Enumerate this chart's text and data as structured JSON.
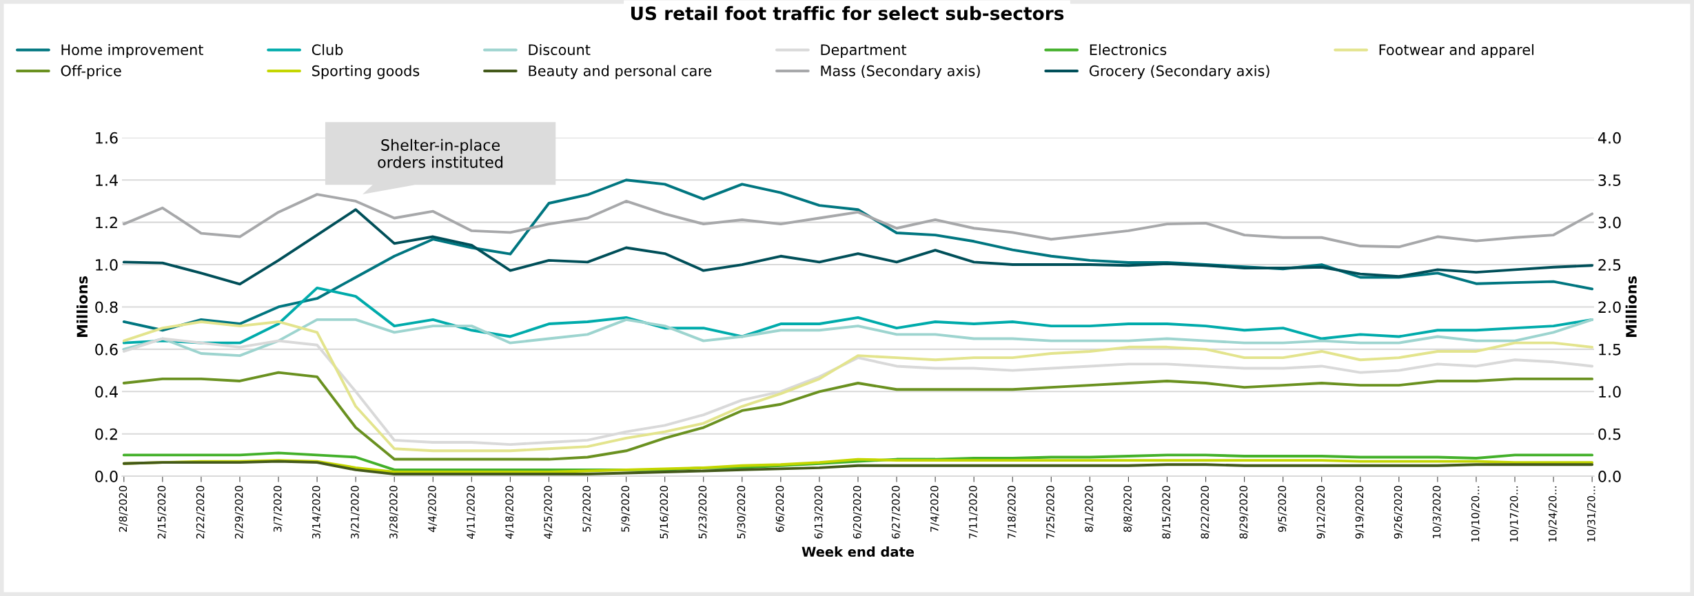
{
  "chart_data": {
    "type": "line",
    "title": "US retail foot traffic for select sub-sectors",
    "xlabel": "Week end date",
    "ylabel": "Millions",
    "y2label": "Millions",
    "categories": [
      "2/8/2020",
      "2/15/2020",
      "2/22/2020",
      "2/29/2020",
      "3/7/2020",
      "3/14/2020",
      "3/21/2020",
      "3/28/2020",
      "4/4/2020",
      "4/11/2020",
      "4/18/2020",
      "4/25/2020",
      "5/2/2020",
      "5/9/2020",
      "5/16/2020",
      "5/23/2020",
      "5/30/2020",
      "6/6/2020",
      "6/13/2020",
      "6/20/2020",
      "6/27/2020",
      "7/4/2020",
      "7/11/2020",
      "7/18/2020",
      "7/25/2020",
      "8/1/2020",
      "8/8/2020",
      "8/15/2020",
      "8/22/2020",
      "8/29/2020",
      "9/5/2020",
      "9/12/2020",
      "9/19/2020",
      "9/26/2020",
      "10/3/2020",
      "10/10/20...",
      "10/17/20...",
      "10/24/20...",
      "10/31/20..."
    ],
    "series": [
      {
        "name": "Home improvement",
        "color": "#007680",
        "values": [
          0.73,
          0.69,
          0.74,
          0.72,
          0.8,
          0.84,
          0.94,
          1.04,
          1.12,
          1.08,
          1.05,
          1.29,
          1.33,
          1.4,
          1.38,
          1.31,
          1.38,
          1.34,
          1.28,
          1.26,
          1.15,
          1.14,
          1.11,
          1.07,
          1.04,
          1.02,
          1.01,
          1.01,
          1.0,
          0.99,
          0.98,
          1.0,
          0.94,
          0.94,
          0.96,
          0.91,
          0.915,
          0.92,
          0.885
        ]
      },
      {
        "name": "Club",
        "color": "#00abab",
        "values": [
          0.63,
          0.64,
          0.63,
          0.63,
          0.72,
          0.89,
          0.85,
          0.71,
          0.74,
          0.69,
          0.66,
          0.72,
          0.73,
          0.75,
          0.7,
          0.7,
          0.66,
          0.72,
          0.72,
          0.75,
          0.7,
          0.73,
          0.72,
          0.73,
          0.71,
          0.71,
          0.72,
          0.72,
          0.71,
          0.69,
          0.7,
          0.65,
          0.67,
          0.66,
          0.69,
          0.69,
          0.7,
          0.71,
          0.74
        ]
      },
      {
        "name": "Discount",
        "color": "#9dd4cf",
        "values": [
          0.6,
          0.65,
          0.58,
          0.57,
          0.64,
          0.74,
          0.74,
          0.68,
          0.71,
          0.71,
          0.63,
          0.65,
          0.67,
          0.74,
          0.71,
          0.64,
          0.66,
          0.69,
          0.69,
          0.71,
          0.67,
          0.67,
          0.65,
          0.65,
          0.64,
          0.64,
          0.64,
          0.65,
          0.64,
          0.63,
          0.63,
          0.64,
          0.63,
          0.63,
          0.66,
          0.64,
          0.64,
          0.68,
          0.74
        ]
      },
      {
        "name": "Department",
        "color": "#d9d9d9",
        "values": [
          0.59,
          0.65,
          0.63,
          0.61,
          0.64,
          0.62,
          0.4,
          0.17,
          0.16,
          0.16,
          0.15,
          0.16,
          0.17,
          0.21,
          0.24,
          0.29,
          0.36,
          0.4,
          0.47,
          0.56,
          0.52,
          0.51,
          0.51,
          0.5,
          0.51,
          0.52,
          0.53,
          0.53,
          0.52,
          0.51,
          0.51,
          0.52,
          0.49,
          0.5,
          0.53,
          0.52,
          0.55,
          0.54,
          0.52
        ]
      },
      {
        "name": "Electronics",
        "color": "#43b02a",
        "values": [
          0.1,
          0.1,
          0.1,
          0.1,
          0.11,
          0.1,
          0.09,
          0.03,
          0.03,
          0.03,
          0.03,
          0.03,
          0.03,
          0.03,
          0.03,
          0.04,
          0.04,
          0.05,
          0.06,
          0.07,
          0.08,
          0.08,
          0.085,
          0.085,
          0.09,
          0.09,
          0.095,
          0.1,
          0.1,
          0.095,
          0.095,
          0.095,
          0.09,
          0.09,
          0.09,
          0.085,
          0.1,
          0.1,
          0.1
        ]
      },
      {
        "name": "Footwear and apparel",
        "color": "#e3e48d",
        "values": [
          0.64,
          0.7,
          0.73,
          0.71,
          0.73,
          0.68,
          0.33,
          0.13,
          0.12,
          0.12,
          0.12,
          0.13,
          0.14,
          0.18,
          0.21,
          0.25,
          0.33,
          0.39,
          0.46,
          0.57,
          0.56,
          0.55,
          0.56,
          0.56,
          0.58,
          0.59,
          0.61,
          0.61,
          0.6,
          0.56,
          0.56,
          0.59,
          0.55,
          0.56,
          0.59,
          0.59,
          0.63,
          0.63,
          0.61
        ]
      },
      {
        "name": "Off-price",
        "color": "#6a9120",
        "values": [
          0.44,
          0.46,
          0.46,
          0.45,
          0.49,
          0.47,
          0.23,
          0.08,
          0.08,
          0.08,
          0.08,
          0.08,
          0.09,
          0.12,
          0.18,
          0.23,
          0.31,
          0.34,
          0.4,
          0.44,
          0.41,
          0.41,
          0.41,
          0.41,
          0.42,
          0.43,
          0.44,
          0.45,
          0.44,
          0.42,
          0.43,
          0.44,
          0.43,
          0.43,
          0.45,
          0.45,
          0.46,
          0.46,
          0.46
        ]
      },
      {
        "name": "Sporting goods",
        "color": "#c4d600",
        "values": [
          0.06,
          0.065,
          0.07,
          0.07,
          0.075,
          0.07,
          0.04,
          0.02,
          0.02,
          0.02,
          0.02,
          0.02,
          0.025,
          0.03,
          0.035,
          0.04,
          0.05,
          0.055,
          0.065,
          0.08,
          0.075,
          0.075,
          0.075,
          0.075,
          0.075,
          0.075,
          0.075,
          0.075,
          0.075,
          0.075,
          0.075,
          0.075,
          0.07,
          0.07,
          0.07,
          0.07,
          0.065,
          0.065,
          0.065
        ]
      },
      {
        "name": "Beauty and personal care",
        "color": "#43591a",
        "values": [
          0.06,
          0.065,
          0.065,
          0.065,
          0.07,
          0.065,
          0.03,
          0.01,
          0.01,
          0.01,
          0.01,
          0.01,
          0.01,
          0.015,
          0.02,
          0.025,
          0.03,
          0.035,
          0.04,
          0.05,
          0.05,
          0.05,
          0.05,
          0.05,
          0.05,
          0.05,
          0.05,
          0.055,
          0.055,
          0.05,
          0.05,
          0.05,
          0.05,
          0.05,
          0.05,
          0.055,
          0.055,
          0.055,
          0.055
        ]
      },
      {
        "name": "Mass (Secondary axis)",
        "color": "#a7a8aa",
        "axis": "y2",
        "values": [
          2.98,
          3.17,
          2.87,
          2.83,
          3.12,
          3.33,
          3.25,
          3.05,
          3.13,
          2.9,
          2.88,
          2.98,
          3.05,
          3.25,
          3.1,
          2.98,
          3.03,
          2.98,
          3.05,
          3.12,
          2.93,
          3.03,
          2.93,
          2.88,
          2.8,
          2.85,
          2.9,
          2.98,
          2.99,
          2.85,
          2.82,
          2.82,
          2.72,
          2.71,
          2.83,
          2.78,
          2.82,
          2.85,
          3.1
        ]
      },
      {
        "name": "Grocery (Secondary axis)",
        "color": "#004f59",
        "axis": "y2",
        "values": [
          2.53,
          2.52,
          2.4,
          2.27,
          2.55,
          2.85,
          3.15,
          2.75,
          2.83,
          2.73,
          2.43,
          2.55,
          2.53,
          2.7,
          2.63,
          2.43,
          2.5,
          2.6,
          2.53,
          2.63,
          2.53,
          2.67,
          2.53,
          2.5,
          2.5,
          2.5,
          2.49,
          2.51,
          2.49,
          2.46,
          2.46,
          2.47,
          2.39,
          2.36,
          2.44,
          2.41,
          2.44,
          2.47,
          2.49
        ]
      }
    ],
    "ylim": [
      0,
      1.6
    ],
    "yticks": [
      {
        "value": 0,
        "label": "0.0"
      },
      0.2,
      0.4,
      0.6,
      0.8,
      {
        "value": 1,
        "label": "1.0"
      },
      1.2,
      1.4,
      1.6
    ],
    "y2lim": [
      0,
      4
    ],
    "y2ticks": [
      {
        "value": 0,
        "label": "0.0"
      },
      0.5,
      {
        "value": 1,
        "label": "1.0"
      },
      1.5,
      {
        "value": 2,
        "label": "2.0"
      },
      2.5,
      {
        "value": 3,
        "label": "3.0"
      },
      3.5,
      {
        "value": 4,
        "label": "4.0"
      }
    ],
    "annotations": [
      "Shelter-in-place\norders instituted"
    ],
    "grid": "y",
    "legend": "top",
    "marker": "none",
    "line_style": "solid"
  }
}
